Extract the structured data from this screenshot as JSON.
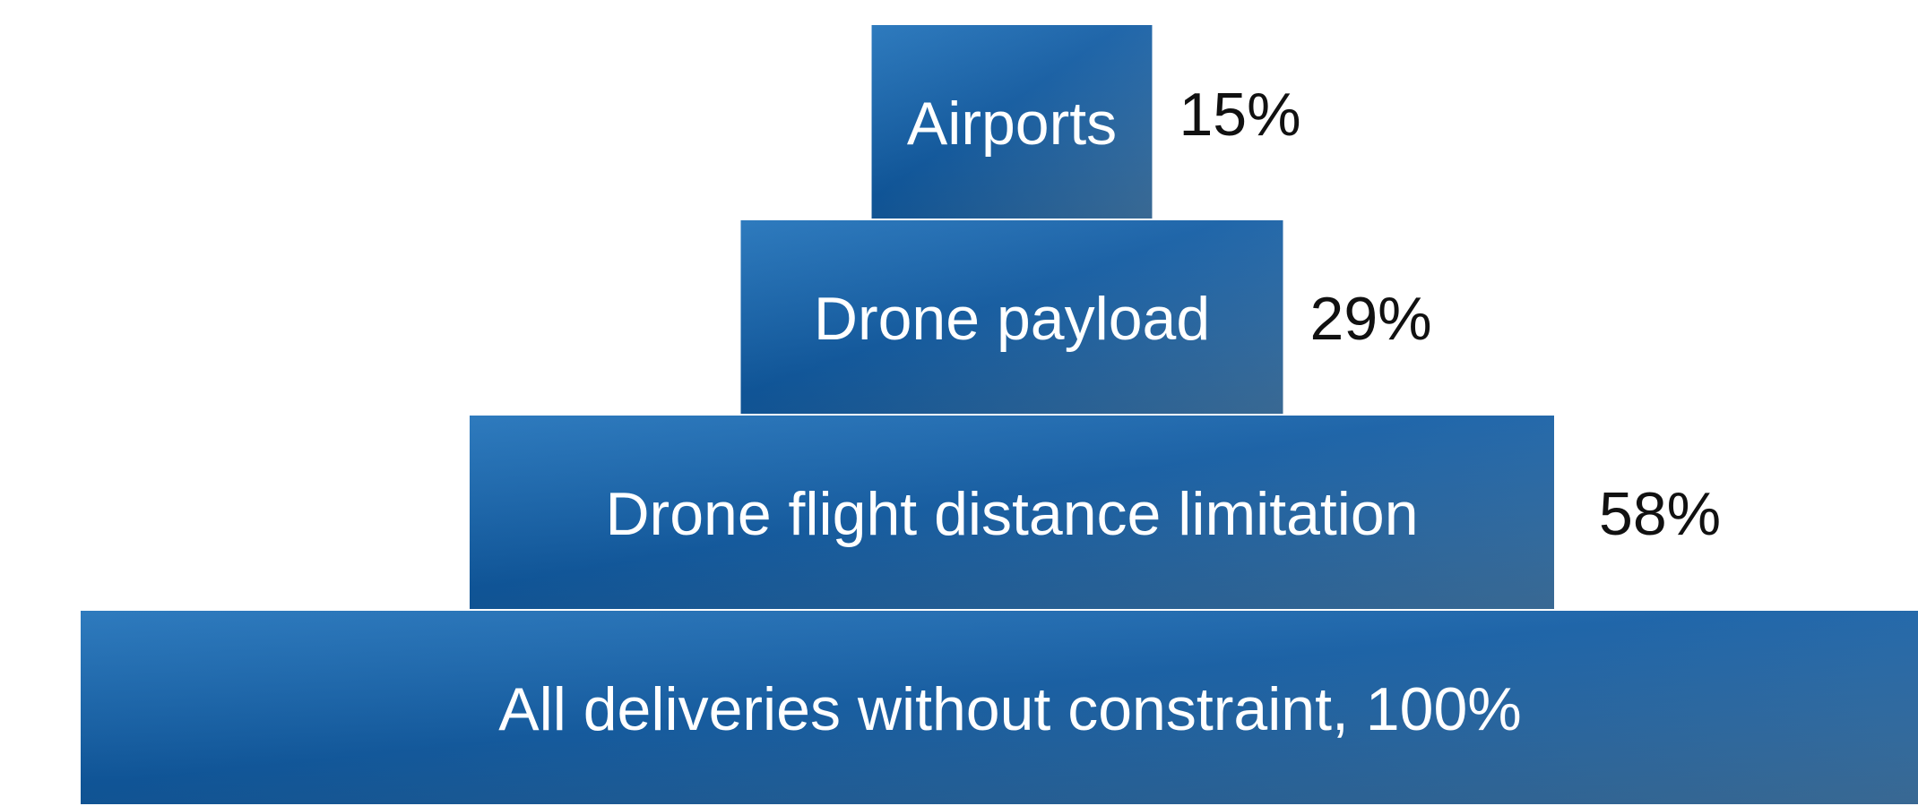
{
  "chart_data": {
    "type": "bar",
    "orientation": "stacked-pyramid",
    "title": "",
    "xlabel": "",
    "ylabel": "",
    "grid": false,
    "legend": "none",
    "colors": {
      "bar_dark": "#0b4f8f",
      "bar_mid": "#1b6db6",
      "bar_light": "#4a7aa6",
      "tier_text": "#ffffff",
      "value_text": "#111111"
    },
    "categories": [
      "All deliveries without constraint, 100%",
      "Drone flight distance limitation",
      "Drone payload",
      "Airports"
    ],
    "values": [
      100,
      58,
      29,
      15
    ],
    "value_labels": [
      "",
      "58%",
      "29%",
      "15%"
    ]
  }
}
